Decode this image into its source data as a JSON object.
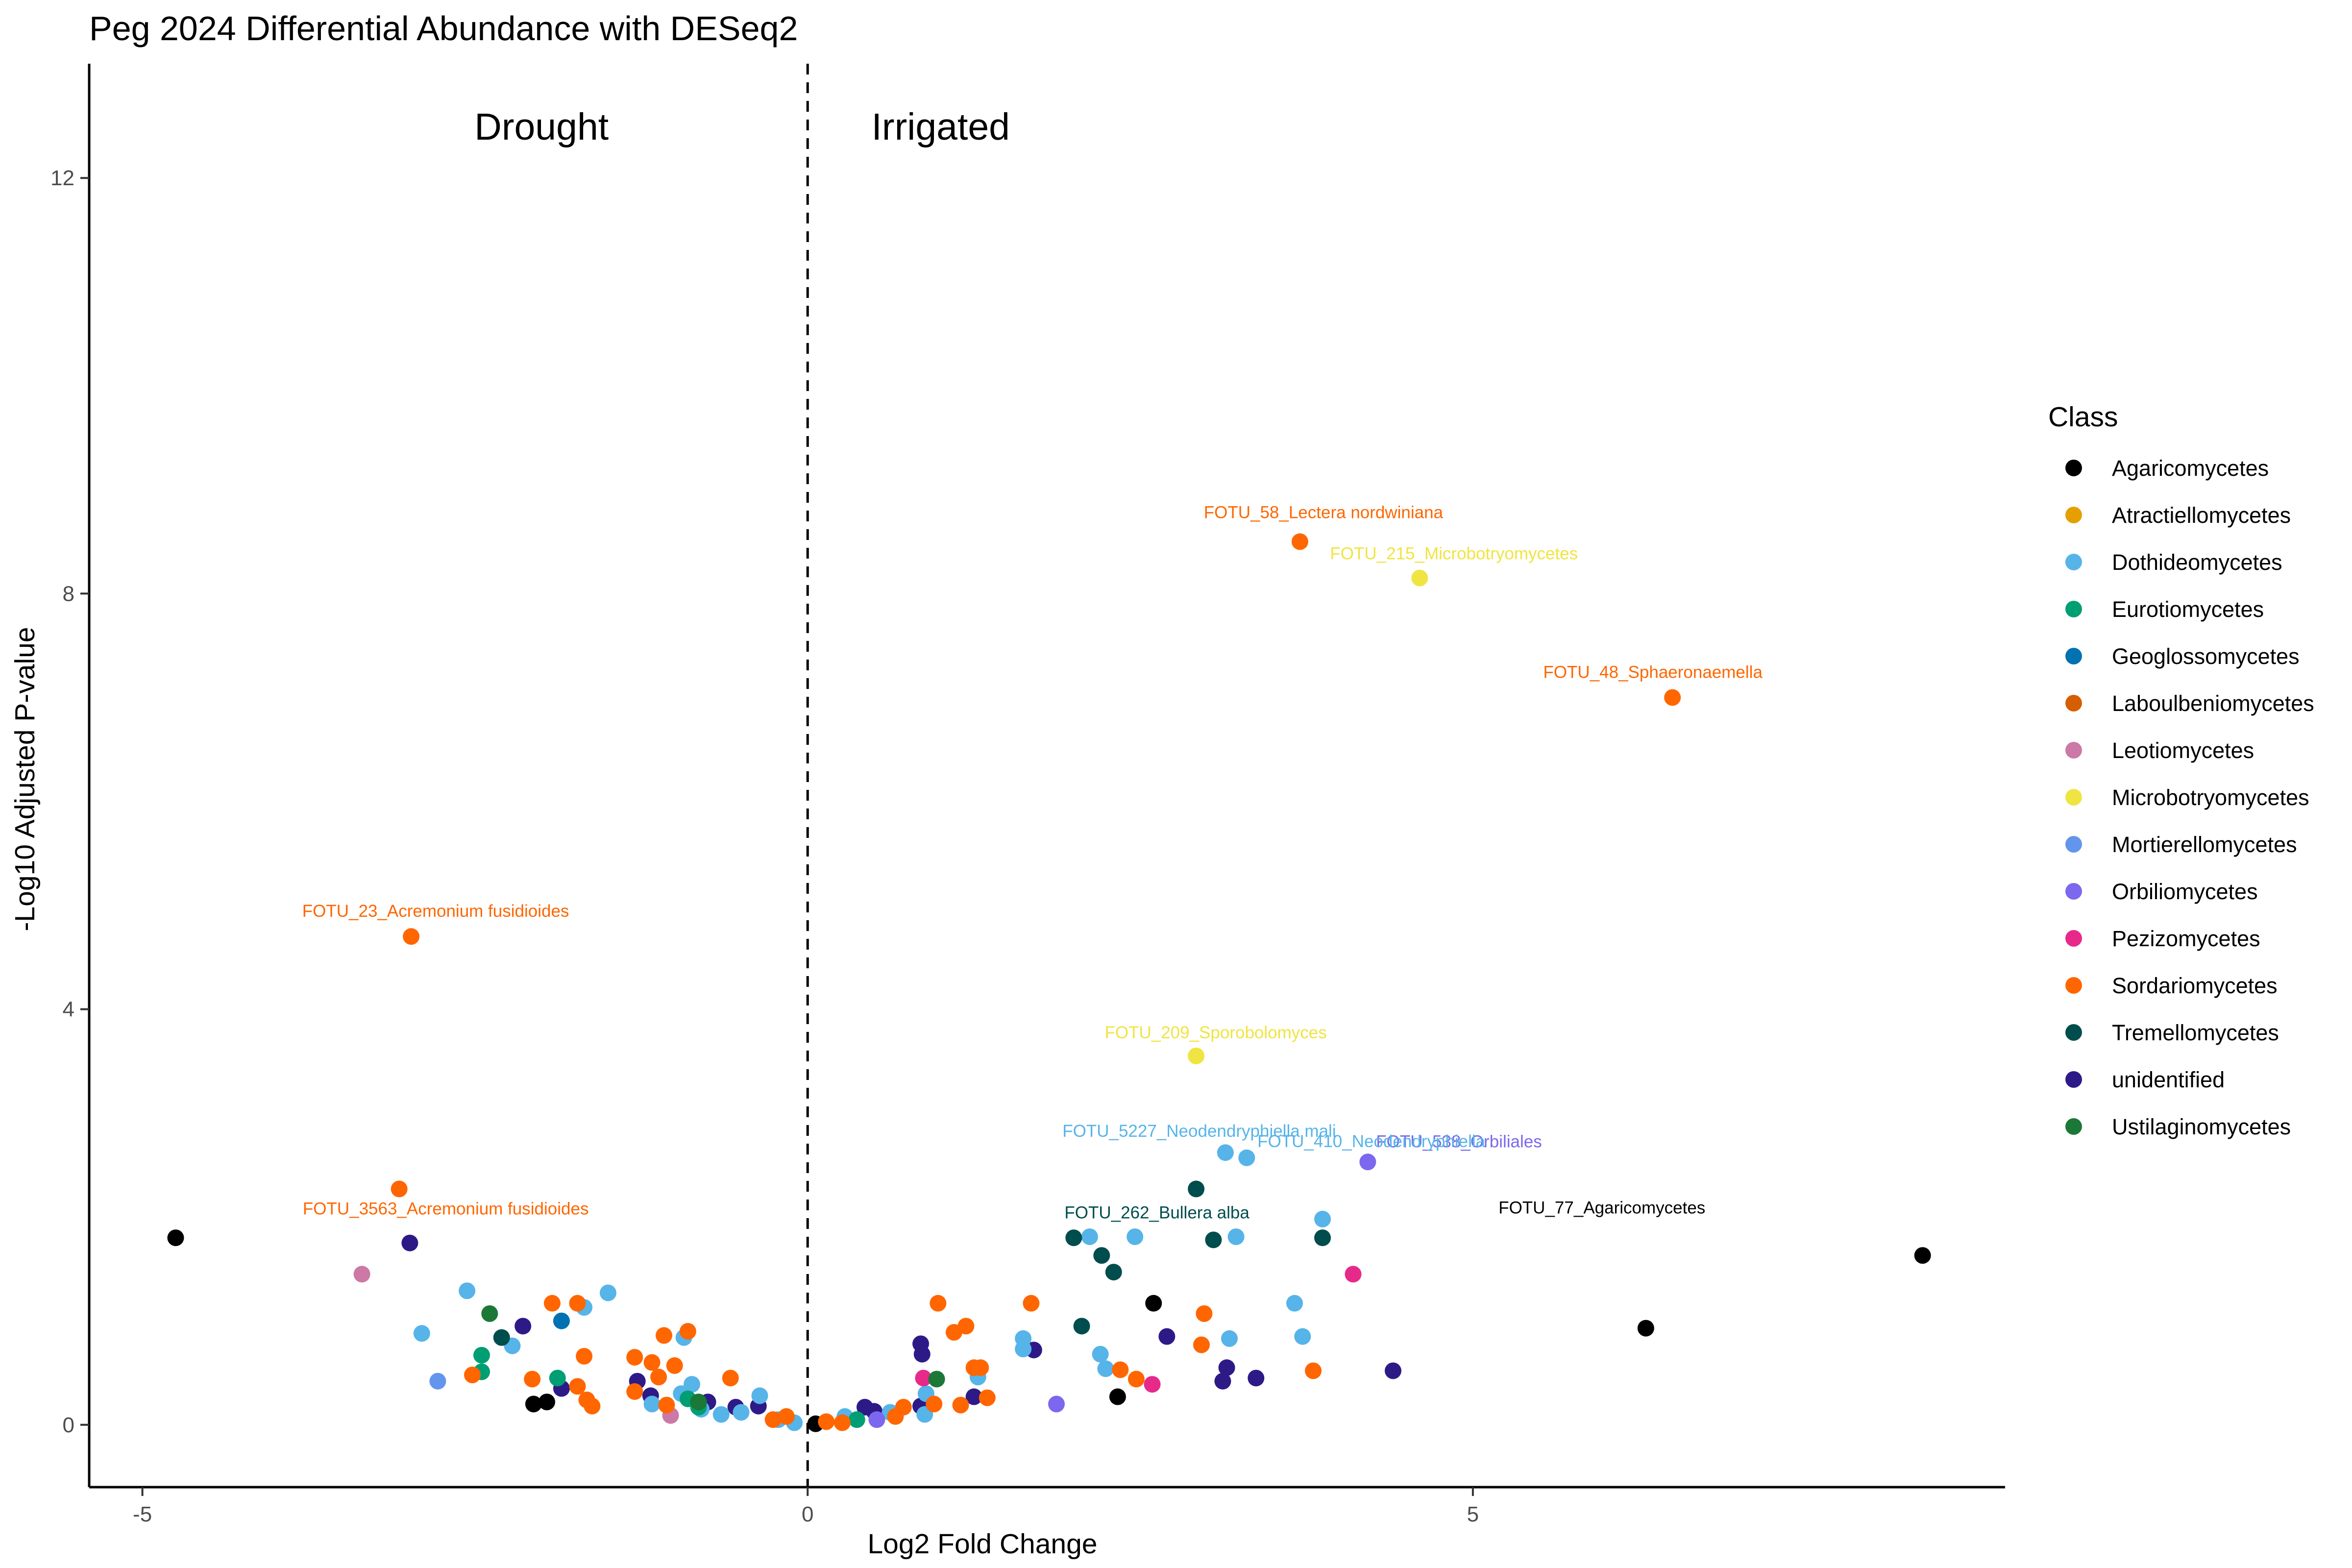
{
  "chart_data": {
    "type": "scatter",
    "title": "Peg 2024 Differential Abundance with DESeq2",
    "xlabel": "Log2 Fold Change",
    "ylabel": "-Log10 Adjusted P-value",
    "xlim": [
      -5.4,
      9.0
    ],
    "ylim": [
      -0.6,
      13.1
    ],
    "xticks": [
      -5,
      0,
      5
    ],
    "xtick_labels": [
      "-5",
      "0",
      "5"
    ],
    "yticks": [
      0,
      4,
      8,
      12
    ],
    "ytick_labels": [
      "0",
      "4",
      "8",
      "12"
    ],
    "grid": false,
    "vline_x": 0,
    "region_labels": [
      {
        "text": "Drought",
        "x": -2.0,
        "y": 12.5
      },
      {
        "text": "Irrigated",
        "x": 1.0,
        "y": 12.5
      }
    ],
    "legend": {
      "title": "Class",
      "position": "right"
    },
    "classes": [
      {
        "name": "Agaricomycetes",
        "color": "#000000"
      },
      {
        "name": "Atractiellomycetes",
        "color": "#E69F00"
      },
      {
        "name": "Dothideomycetes",
        "color": "#56B4E9"
      },
      {
        "name": "Eurotiomycetes",
        "color": "#009E73"
      },
      {
        "name": "Geoglossomycetes",
        "color": "#0072B2"
      },
      {
        "name": "Laboulbeniomycetes",
        "color": "#D55E00"
      },
      {
        "name": "Leotiomycetes",
        "color": "#CC79A7"
      },
      {
        "name": "Microbotryomycetes",
        "color": "#F0E442"
      },
      {
        "name": "Mortierellomycetes",
        "color": "#6495ED"
      },
      {
        "name": "Orbiliomycetes",
        "color": "#7B68EE"
      },
      {
        "name": "Pezizomycetes",
        "color": "#E7298A"
      },
      {
        "name": "Sordariomycetes",
        "color": "#FF6600"
      },
      {
        "name": "Tremellomycetes",
        "color": "#004D4D"
      },
      {
        "name": "unidentified",
        "color": "#2E1A87"
      },
      {
        "name": "Ustilaginomycetes",
        "color": "#1B7837"
      }
    ],
    "labeled_points": [
      {
        "label": "FOTU_58_Lectera nordwiniana",
        "class": "Sordariomycetes",
        "x": 3.7,
        "y": 8.5
      },
      {
        "label": "FOTU_215_Microbotryomycetes",
        "class": "Microbotryomycetes",
        "x": 4.6,
        "y": 8.15
      },
      {
        "label": "FOTU_48_Sphaeronaemella",
        "class": "Sordariomycetes",
        "x": 6.5,
        "y": 7.0
      },
      {
        "label": "FOTU_23_Acremonium fusidioides",
        "class": "Sordariomycetes",
        "x": -2.98,
        "y": 4.7
      },
      {
        "label": "FOTU_209_Sporobolomyces",
        "class": "Microbotryomycetes",
        "x": 2.92,
        "y": 3.55
      },
      {
        "label": "FOTU_5227_Neodendryphiella mali",
        "class": "Dothideomycetes",
        "x": 3.12,
        "y": 2.62
      },
      {
        "label": "FOTU_538_Orbiliales",
        "class": "Orbiliomycetes",
        "x": 4.18,
        "y": 2.53
      },
      {
        "label": "FOTU_410_Neodendryphiella",
        "class": "Dothideomycetes",
        "x": 3.27,
        "y": 2.57
      },
      {
        "label": "FOTU_77_Agaricomycetes",
        "class": "Agaricomycetes",
        "x": 5.97,
        "y": 2.28
      },
      {
        "label": "FOTU_3563_Acremonium fusidioides",
        "class": "Sordariomycetes",
        "x": -3.07,
        "y": 2.27
      },
      {
        "label": "FOTU_262_Bullera alba",
        "class": "Tremellomycetes",
        "x": 2.92,
        "y": 2.27
      }
    ],
    "points": [
      {
        "class": "Agaricomycetes",
        "x": -4.75,
        "y": 1.8
      },
      {
        "class": "Agaricomycetes",
        "x": -2.06,
        "y": 0.2
      },
      {
        "class": "Agaricomycetes",
        "x": -1.96,
        "y": 0.22
      },
      {
        "class": "Agaricomycetes",
        "x": 0.06,
        "y": 0.01
      },
      {
        "class": "Agaricomycetes",
        "x": 2.33,
        "y": 0.27
      },
      {
        "class": "Agaricomycetes",
        "x": 2.6,
        "y": 1.17
      },
      {
        "class": "Agaricomycetes",
        "x": 6.3,
        "y": 0.93
      },
      {
        "class": "Agaricomycetes",
        "x": 8.38,
        "y": 1.63
      },
      {
        "class": "Leotiomycetes",
        "x": -3.35,
        "y": 1.45
      },
      {
        "class": "Leotiomycetes",
        "x": -1.03,
        "y": 0.09
      },
      {
        "class": "unidentified",
        "x": -2.99,
        "y": 1.75
      },
      {
        "class": "unidentified",
        "x": -2.14,
        "y": 0.95
      },
      {
        "class": "unidentified",
        "x": -1.85,
        "y": 0.35
      },
      {
        "class": "unidentified",
        "x": -1.28,
        "y": 0.42
      },
      {
        "class": "unidentified",
        "x": -1.18,
        "y": 0.28
      },
      {
        "class": "unidentified",
        "x": -0.75,
        "y": 0.22
      },
      {
        "class": "unidentified",
        "x": -0.54,
        "y": 0.17
      },
      {
        "class": "unidentified",
        "x": -0.37,
        "y": 0.18
      },
      {
        "class": "unidentified",
        "x": 0.43,
        "y": 0.17
      },
      {
        "class": "unidentified",
        "x": 0.5,
        "y": 0.13
      },
      {
        "class": "unidentified",
        "x": 0.85,
        "y": 0.78
      },
      {
        "class": "unidentified",
        "x": 0.86,
        "y": 0.68
      },
      {
        "class": "unidentified",
        "x": 0.85,
        "y": 0.18
      },
      {
        "class": "unidentified",
        "x": 1.25,
        "y": 0.27
      },
      {
        "class": "unidentified",
        "x": 1.7,
        "y": 0.72
      },
      {
        "class": "unidentified",
        "x": 2.7,
        "y": 0.85
      },
      {
        "class": "unidentified",
        "x": 3.12,
        "y": 0.42
      },
      {
        "class": "unidentified",
        "x": 3.15,
        "y": 0.55
      },
      {
        "class": "unidentified",
        "x": 3.37,
        "y": 0.45
      },
      {
        "class": "unidentified",
        "x": 4.4,
        "y": 0.52
      },
      {
        "class": "Dothideomycetes",
        "x": -2.9,
        "y": 0.88
      },
      {
        "class": "Dothideomycetes",
        "x": -2.56,
        "y": 1.29
      },
      {
        "class": "Dothideomycetes",
        "x": -2.22,
        "y": 0.76
      },
      {
        "class": "Dothideomycetes",
        "x": -1.68,
        "y": 1.13
      },
      {
        "class": "Dothideomycetes",
        "x": -1.5,
        "y": 1.27
      },
      {
        "class": "Dothideomycetes",
        "x": -1.17,
        "y": 0.2
      },
      {
        "class": "Dothideomycetes",
        "x": -0.95,
        "y": 0.3
      },
      {
        "class": "Dothideomycetes",
        "x": -0.93,
        "y": 0.84
      },
      {
        "class": "Dothideomycetes",
        "x": -0.87,
        "y": 0.39
      },
      {
        "class": "Dothideomycetes",
        "x": -0.8,
        "y": 0.15
      },
      {
        "class": "Dothideomycetes",
        "x": -0.65,
        "y": 0.1
      },
      {
        "class": "Dothideomycetes",
        "x": -0.5,
        "y": 0.12
      },
      {
        "class": "Dothideomycetes",
        "x": -0.36,
        "y": 0.28
      },
      {
        "class": "Dothideomycetes",
        "x": -0.22,
        "y": 0.05
      },
      {
        "class": "Dothideomycetes",
        "x": -0.1,
        "y": 0.02
      },
      {
        "class": "Dothideomycetes",
        "x": 0.28,
        "y": 0.08
      },
      {
        "class": "Dothideomycetes",
        "x": 0.62,
        "y": 0.12
      },
      {
        "class": "Dothideomycetes",
        "x": 0.88,
        "y": 0.1
      },
      {
        "class": "Dothideomycetes",
        "x": 0.89,
        "y": 0.3
      },
      {
        "class": "Dothideomycetes",
        "x": 1.28,
        "y": 0.46
      },
      {
        "class": "Dothideomycetes",
        "x": 1.62,
        "y": 0.83
      },
      {
        "class": "Dothideomycetes",
        "x": 1.62,
        "y": 0.73
      },
      {
        "class": "Dothideomycetes",
        "x": 2.12,
        "y": 1.81
      },
      {
        "class": "Dothideomycetes",
        "x": 2.2,
        "y": 0.68
      },
      {
        "class": "Dothideomycetes",
        "x": 2.24,
        "y": 0.54
      },
      {
        "class": "Dothideomycetes",
        "x": 2.46,
        "y": 1.81
      },
      {
        "class": "Dothideomycetes",
        "x": 3.14,
        "y": 2.62
      },
      {
        "class": "Dothideomycetes",
        "x": 3.17,
        "y": 0.83
      },
      {
        "class": "Dothideomycetes",
        "x": 3.22,
        "y": 1.81
      },
      {
        "class": "Dothideomycetes",
        "x": 3.3,
        "y": 2.57
      },
      {
        "class": "Dothideomycetes",
        "x": 3.66,
        "y": 1.17
      },
      {
        "class": "Dothideomycetes",
        "x": 3.72,
        "y": 0.85
      },
      {
        "class": "Dothideomycetes",
        "x": 3.87,
        "y": 1.98
      },
      {
        "class": "Eurotiomycetes",
        "x": -2.45,
        "y": 0.67
      },
      {
        "class": "Eurotiomycetes",
        "x": -2.45,
        "y": 0.51
      },
      {
        "class": "Eurotiomycetes",
        "x": -1.88,
        "y": 0.45
      },
      {
        "class": "Eurotiomycetes",
        "x": -0.9,
        "y": 0.25
      },
      {
        "class": "Eurotiomycetes",
        "x": -0.82,
        "y": 0.17
      },
      {
        "class": "Eurotiomycetes",
        "x": 0.37,
        "y": 0.05
      },
      {
        "class": "Geoglossomycetes",
        "x": -1.85,
        "y": 1.0
      },
      {
        "class": "Mortierellomycetes",
        "x": -2.78,
        "y": 0.42
      },
      {
        "class": "Orbiliomycetes",
        "x": 1.87,
        "y": 0.2
      },
      {
        "class": "Orbiliomycetes",
        "x": 4.21,
        "y": 2.53
      },
      {
        "class": "Orbiliomycetes",
        "x": 0.52,
        "y": 0.05
      },
      {
        "class": "Pezizomycetes",
        "x": 0.87,
        "y": 0.45
      },
      {
        "class": "Pezizomycetes",
        "x": 2.59,
        "y": 0.39
      },
      {
        "class": "Pezizomycetes",
        "x": 4.1,
        "y": 1.45
      },
      {
        "class": "Microbotryomycetes",
        "x": 2.92,
        "y": 3.55
      },
      {
        "class": "Microbotryomycetes",
        "x": 4.6,
        "y": 8.15
      },
      {
        "class": "Sordariomycetes",
        "x": -3.07,
        "y": 2.27
      },
      {
        "class": "Sordariomycetes",
        "x": -2.98,
        "y": 4.7
      },
      {
        "class": "Sordariomycetes",
        "x": -2.52,
        "y": 0.48
      },
      {
        "class": "Sordariomycetes",
        "x": -2.07,
        "y": 0.44
      },
      {
        "class": "Sordariomycetes",
        "x": -1.92,
        "y": 1.17
      },
      {
        "class": "Sordariomycetes",
        "x": -1.73,
        "y": 1.17
      },
      {
        "class": "Sordariomycetes",
        "x": -1.73,
        "y": 0.37
      },
      {
        "class": "Sordariomycetes",
        "x": -1.68,
        "y": 0.66
      },
      {
        "class": "Sordariomycetes",
        "x": -1.66,
        "y": 0.24
      },
      {
        "class": "Sordariomycetes",
        "x": -1.62,
        "y": 0.18
      },
      {
        "class": "Sordariomycetes",
        "x": -1.3,
        "y": 0.65
      },
      {
        "class": "Sordariomycetes",
        "x": -1.3,
        "y": 0.32
      },
      {
        "class": "Sordariomycetes",
        "x": -1.17,
        "y": 0.6
      },
      {
        "class": "Sordariomycetes",
        "x": -1.12,
        "y": 0.46
      },
      {
        "class": "Sordariomycetes",
        "x": -1.08,
        "y": 0.86
      },
      {
        "class": "Sordariomycetes",
        "x": -1.06,
        "y": 0.19
      },
      {
        "class": "Sordariomycetes",
        "x": -1.0,
        "y": 0.57
      },
      {
        "class": "Sordariomycetes",
        "x": -0.9,
        "y": 0.9
      },
      {
        "class": "Sordariomycetes",
        "x": -0.58,
        "y": 0.45
      },
      {
        "class": "Sordariomycetes",
        "x": -0.26,
        "y": 0.05
      },
      {
        "class": "Sordariomycetes",
        "x": -0.16,
        "y": 0.08
      },
      {
        "class": "Sordariomycetes",
        "x": 0.14,
        "y": 0.03
      },
      {
        "class": "Sordariomycetes",
        "x": 0.26,
        "y": 0.02
      },
      {
        "class": "Sordariomycetes",
        "x": 0.66,
        "y": 0.08
      },
      {
        "class": "Sordariomycetes",
        "x": 0.72,
        "y": 0.17
      },
      {
        "class": "Sordariomycetes",
        "x": 0.95,
        "y": 0.2
      },
      {
        "class": "Sordariomycetes",
        "x": 0.98,
        "y": 1.17
      },
      {
        "class": "Sordariomycetes",
        "x": 1.1,
        "y": 0.89
      },
      {
        "class": "Sordariomycetes",
        "x": 1.15,
        "y": 0.19
      },
      {
        "class": "Sordariomycetes",
        "x": 1.19,
        "y": 0.95
      },
      {
        "class": "Sordariomycetes",
        "x": 1.25,
        "y": 0.55
      },
      {
        "class": "Sordariomycetes",
        "x": 1.3,
        "y": 0.55
      },
      {
        "class": "Sordariomycetes",
        "x": 1.35,
        "y": 0.26
      },
      {
        "class": "Sordariomycetes",
        "x": 1.68,
        "y": 1.17
      },
      {
        "class": "Sordariomycetes",
        "x": 2.35,
        "y": 0.53
      },
      {
        "class": "Sordariomycetes",
        "x": 2.47,
        "y": 0.44
      },
      {
        "class": "Sordariomycetes",
        "x": 2.96,
        "y": 0.77
      },
      {
        "class": "Sordariomycetes",
        "x": 2.98,
        "y": 1.07
      },
      {
        "class": "Sordariomycetes",
        "x": 3.7,
        "y": 8.5
      },
      {
        "class": "Sordariomycetes",
        "x": 3.8,
        "y": 0.52
      },
      {
        "class": "Sordariomycetes",
        "x": 6.5,
        "y": 7.0
      },
      {
        "class": "Tremellomycetes",
        "x": -2.3,
        "y": 0.84
      },
      {
        "class": "Tremellomycetes",
        "x": 2.0,
        "y": 1.8
      },
      {
        "class": "Tremellomycetes",
        "x": 2.06,
        "y": 0.95
      },
      {
        "class": "Tremellomycetes",
        "x": 2.21,
        "y": 1.63
      },
      {
        "class": "Tremellomycetes",
        "x": 2.3,
        "y": 1.47
      },
      {
        "class": "Tremellomycetes",
        "x": 2.92,
        "y": 2.27
      },
      {
        "class": "Tremellomycetes",
        "x": 3.05,
        "y": 1.78
      },
      {
        "class": "Tremellomycetes",
        "x": 3.87,
        "y": 1.8
      },
      {
        "class": "Ustilaginomycetes",
        "x": -2.39,
        "y": 1.07
      },
      {
        "class": "Ustilaginomycetes",
        "x": -0.82,
        "y": 0.22
      },
      {
        "class": "Ustilaginomycetes",
        "x": 0.97,
        "y": 0.44
      }
    ]
  }
}
